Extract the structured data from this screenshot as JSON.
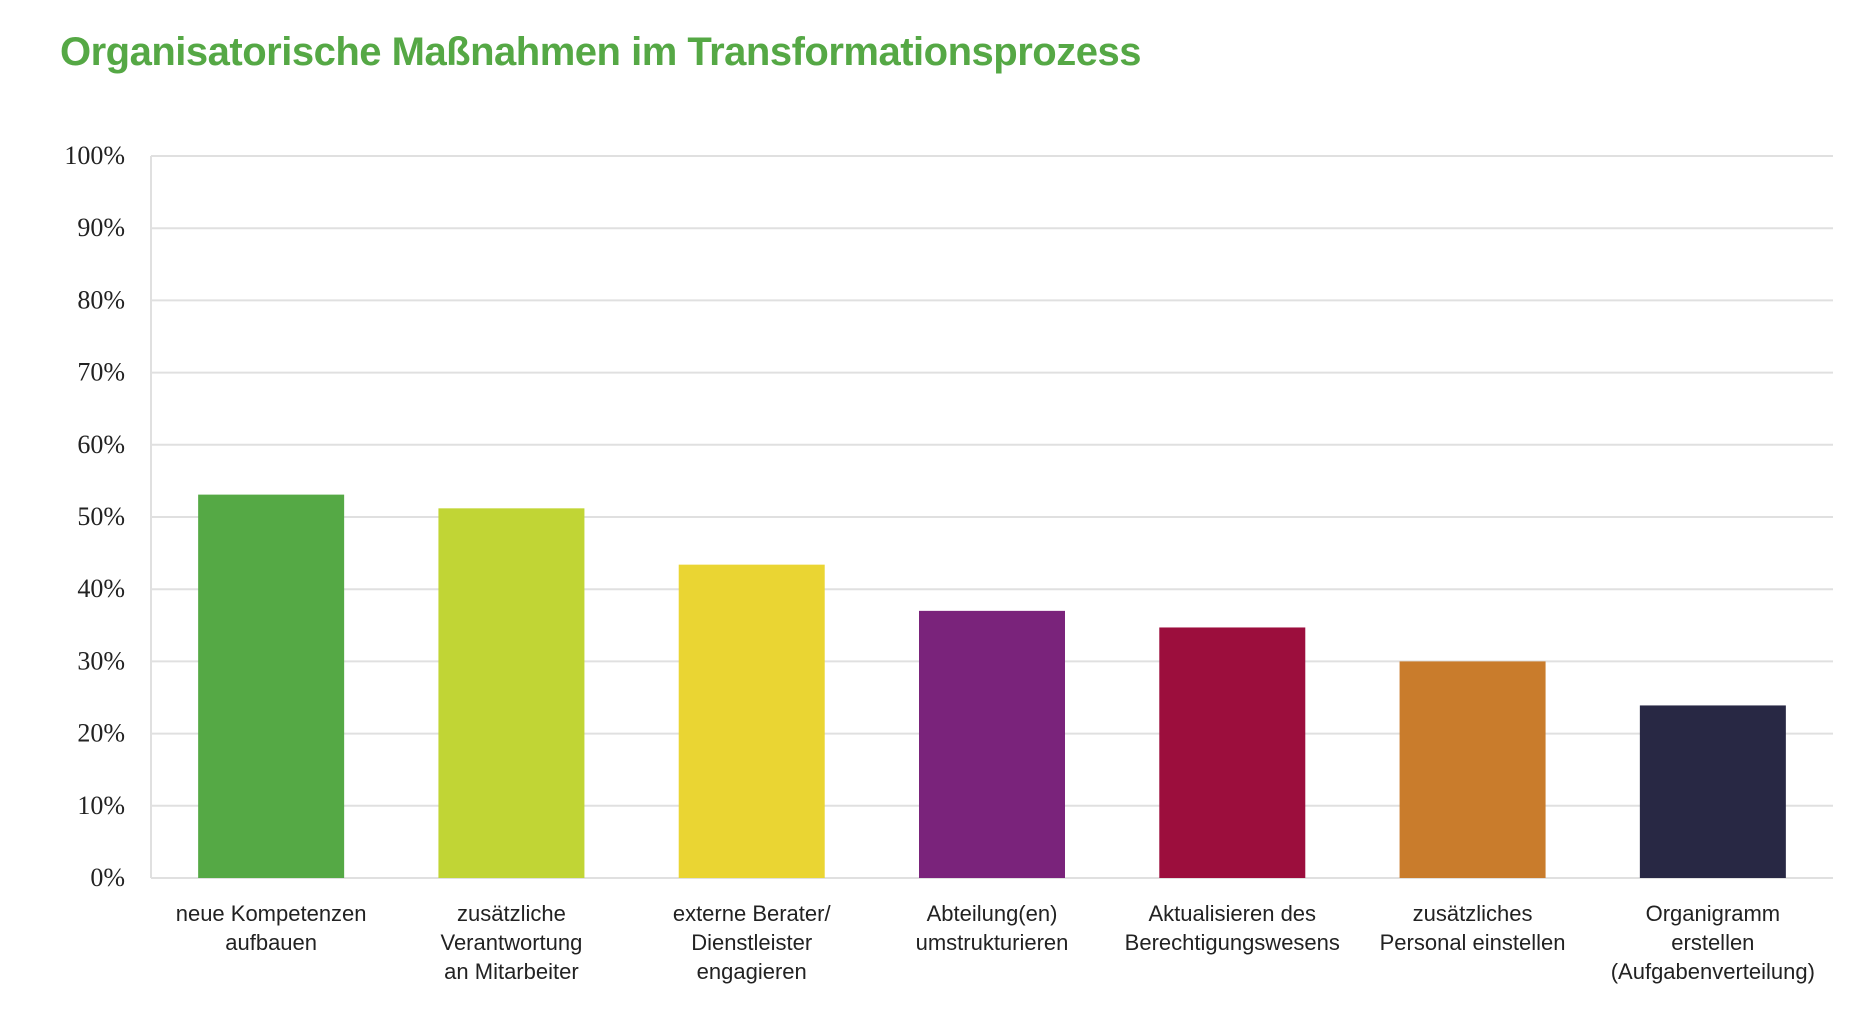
{
  "chart_data": {
    "type": "bar",
    "title": "Organisatorische Maßnahmen im Transformationsprozess",
    "xlabel": "",
    "ylabel": "",
    "ylim": [
      0,
      100
    ],
    "grid": true,
    "yticks": [
      "0%",
      "10%",
      "20%",
      "30%",
      "40%",
      "50%",
      "60%",
      "70%",
      "80%",
      "90%",
      "100%"
    ],
    "categories": [
      [
        "neue Kompetenzen",
        "aufbauen"
      ],
      [
        "zusätzliche",
        "Verantwortung",
        "an Mitarbeiter"
      ],
      [
        "externe Berater/",
        "Dienstleister",
        "engagieren"
      ],
      [
        "Abteilung(en)",
        "umstrukturieren"
      ],
      [
        "Aktualisieren des",
        "Berechtigungswesens"
      ],
      [
        "zusätzliches",
        "Personal einstellen"
      ],
      [
        "Organigramm",
        "erstellen",
        "(Aufgabenverteilung)"
      ]
    ],
    "values": [
      53.1,
      51.2,
      43.4,
      37.0,
      34.7,
      30.0,
      23.9
    ],
    "colors": [
      "#55a945",
      "#c1d535",
      "#ead533",
      "#7a237b",
      "#9c0e3d",
      "#c97c2c",
      "#282844"
    ]
  }
}
